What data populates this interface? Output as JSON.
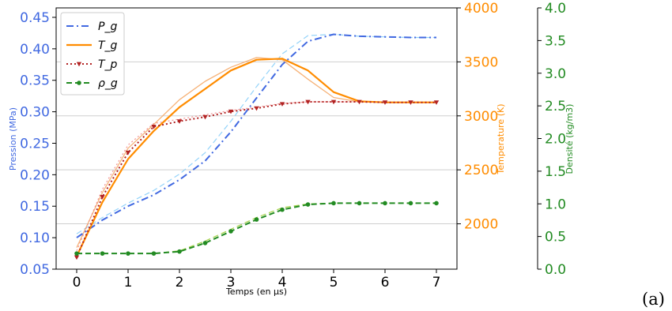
{
  "panel_label": "(a)",
  "chart_data": {
    "type": "line",
    "xlabel": "Temps (en μs)",
    "x": [
      0,
      0.5,
      1,
      1.5,
      2,
      2.5,
      3,
      3.5,
      4,
      4.5,
      5,
      5.5,
      6,
      6.5,
      7
    ],
    "xlim": [
      -0.4,
      7.4
    ],
    "xticks": [
      "0",
      "1",
      "2",
      "3",
      "4",
      "5",
      "6",
      "7"
    ],
    "axes": {
      "pressure": {
        "label": "Pression (MPa)",
        "ylim": [
          0.05,
          0.465
        ],
        "ticks": [
          "0.05",
          "0.10",
          "0.15",
          "0.20",
          "0.25",
          "0.30",
          "0.35",
          "0.40",
          "0.45"
        ],
        "color": "#4169e1"
      },
      "temperature": {
        "label": "Temperature (K)",
        "ylim": [
          1580,
          4000
        ],
        "ticks": [
          "2000",
          "2500",
          "3000",
          "3500",
          "4000"
        ],
        "color": "#ff8c00"
      },
      "density": {
        "label": "Densité (kg/m3)",
        "ylim": [
          0.0,
          4.0
        ],
        "ticks": [
          "0.0",
          "0.5",
          "1.0",
          "1.5",
          "2.0",
          "2.5",
          "3.0",
          "3.5",
          "4.0"
        ],
        "color": "#228b22"
      }
    },
    "legend": {
      "position": "top-left",
      "entries": [
        "P_g",
        "T_g",
        "T_p",
        "ρ_g"
      ]
    },
    "grid": "horizontal",
    "series": [
      {
        "name": "P_g",
        "axis": "pressure",
        "color": "#4169e1",
        "style": "dashdot",
        "values": [
          0.1,
          0.128,
          0.15,
          0.168,
          0.192,
          0.222,
          0.268,
          0.322,
          0.375,
          0.412,
          0.423,
          0.42,
          0.419,
          0.418,
          0.418
        ]
      },
      {
        "name": "P_g (ref)",
        "axis": "pressure",
        "color": "#87cefa",
        "style": "dashthin",
        "values": [
          0.106,
          0.132,
          0.155,
          0.175,
          0.201,
          0.235,
          0.285,
          0.34,
          0.392,
          0.421,
          0.423,
          0.42,
          0.419,
          0.418,
          0.418
        ]
      },
      {
        "name": "T_g",
        "axis": "temperature",
        "color": "#ff8c00",
        "style": "solid",
        "values": [
          1700,
          2200,
          2600,
          2860,
          3080,
          3250,
          3420,
          3520,
          3530,
          3420,
          3220,
          3135,
          3125,
          3125,
          3125
        ]
      },
      {
        "name": "T_g (ref)",
        "axis": "temperature",
        "color": "#f4a460",
        "style": "solidthin",
        "values": [
          1780,
          2290,
          2700,
          2920,
          3150,
          3320,
          3450,
          3540,
          3520,
          3340,
          3170,
          3130,
          3125,
          3125,
          3125
        ]
      },
      {
        "name": "T_p",
        "axis": "temperature",
        "color": "#b22222",
        "style": "dotted",
        "marker": "triangle",
        "values": [
          1690,
          2250,
          2660,
          2900,
          2950,
          2990,
          3040,
          3070,
          3110,
          3130,
          3130,
          3130,
          3125,
          3125,
          3125
        ]
      },
      {
        "name": "T_p (ref)",
        "axis": "temperature",
        "color": "#f08080",
        "style": "dottedthin",
        "values": [
          1750,
          2320,
          2730,
          2930,
          2970,
          3010,
          3050,
          3080,
          3115,
          3130,
          3130,
          3130,
          3125,
          3125,
          3125
        ]
      },
      {
        "name": "ρ_g",
        "axis": "density",
        "color": "#228b22",
        "style": "dashed",
        "marker": "circle",
        "values": [
          0.24,
          0.24,
          0.24,
          0.24,
          0.27,
          0.4,
          0.58,
          0.76,
          0.91,
          0.99,
          1.01,
          1.01,
          1.01,
          1.01,
          1.01
        ]
      },
      {
        "name": "ρ_g (ref)",
        "axis": "density",
        "color": "#9acd32",
        "style": "dashthin",
        "values": [
          0.24,
          0.24,
          0.24,
          0.24,
          0.28,
          0.43,
          0.61,
          0.79,
          0.94,
          1.0,
          1.01,
          1.01,
          1.01,
          1.01,
          1.01
        ]
      }
    ]
  }
}
